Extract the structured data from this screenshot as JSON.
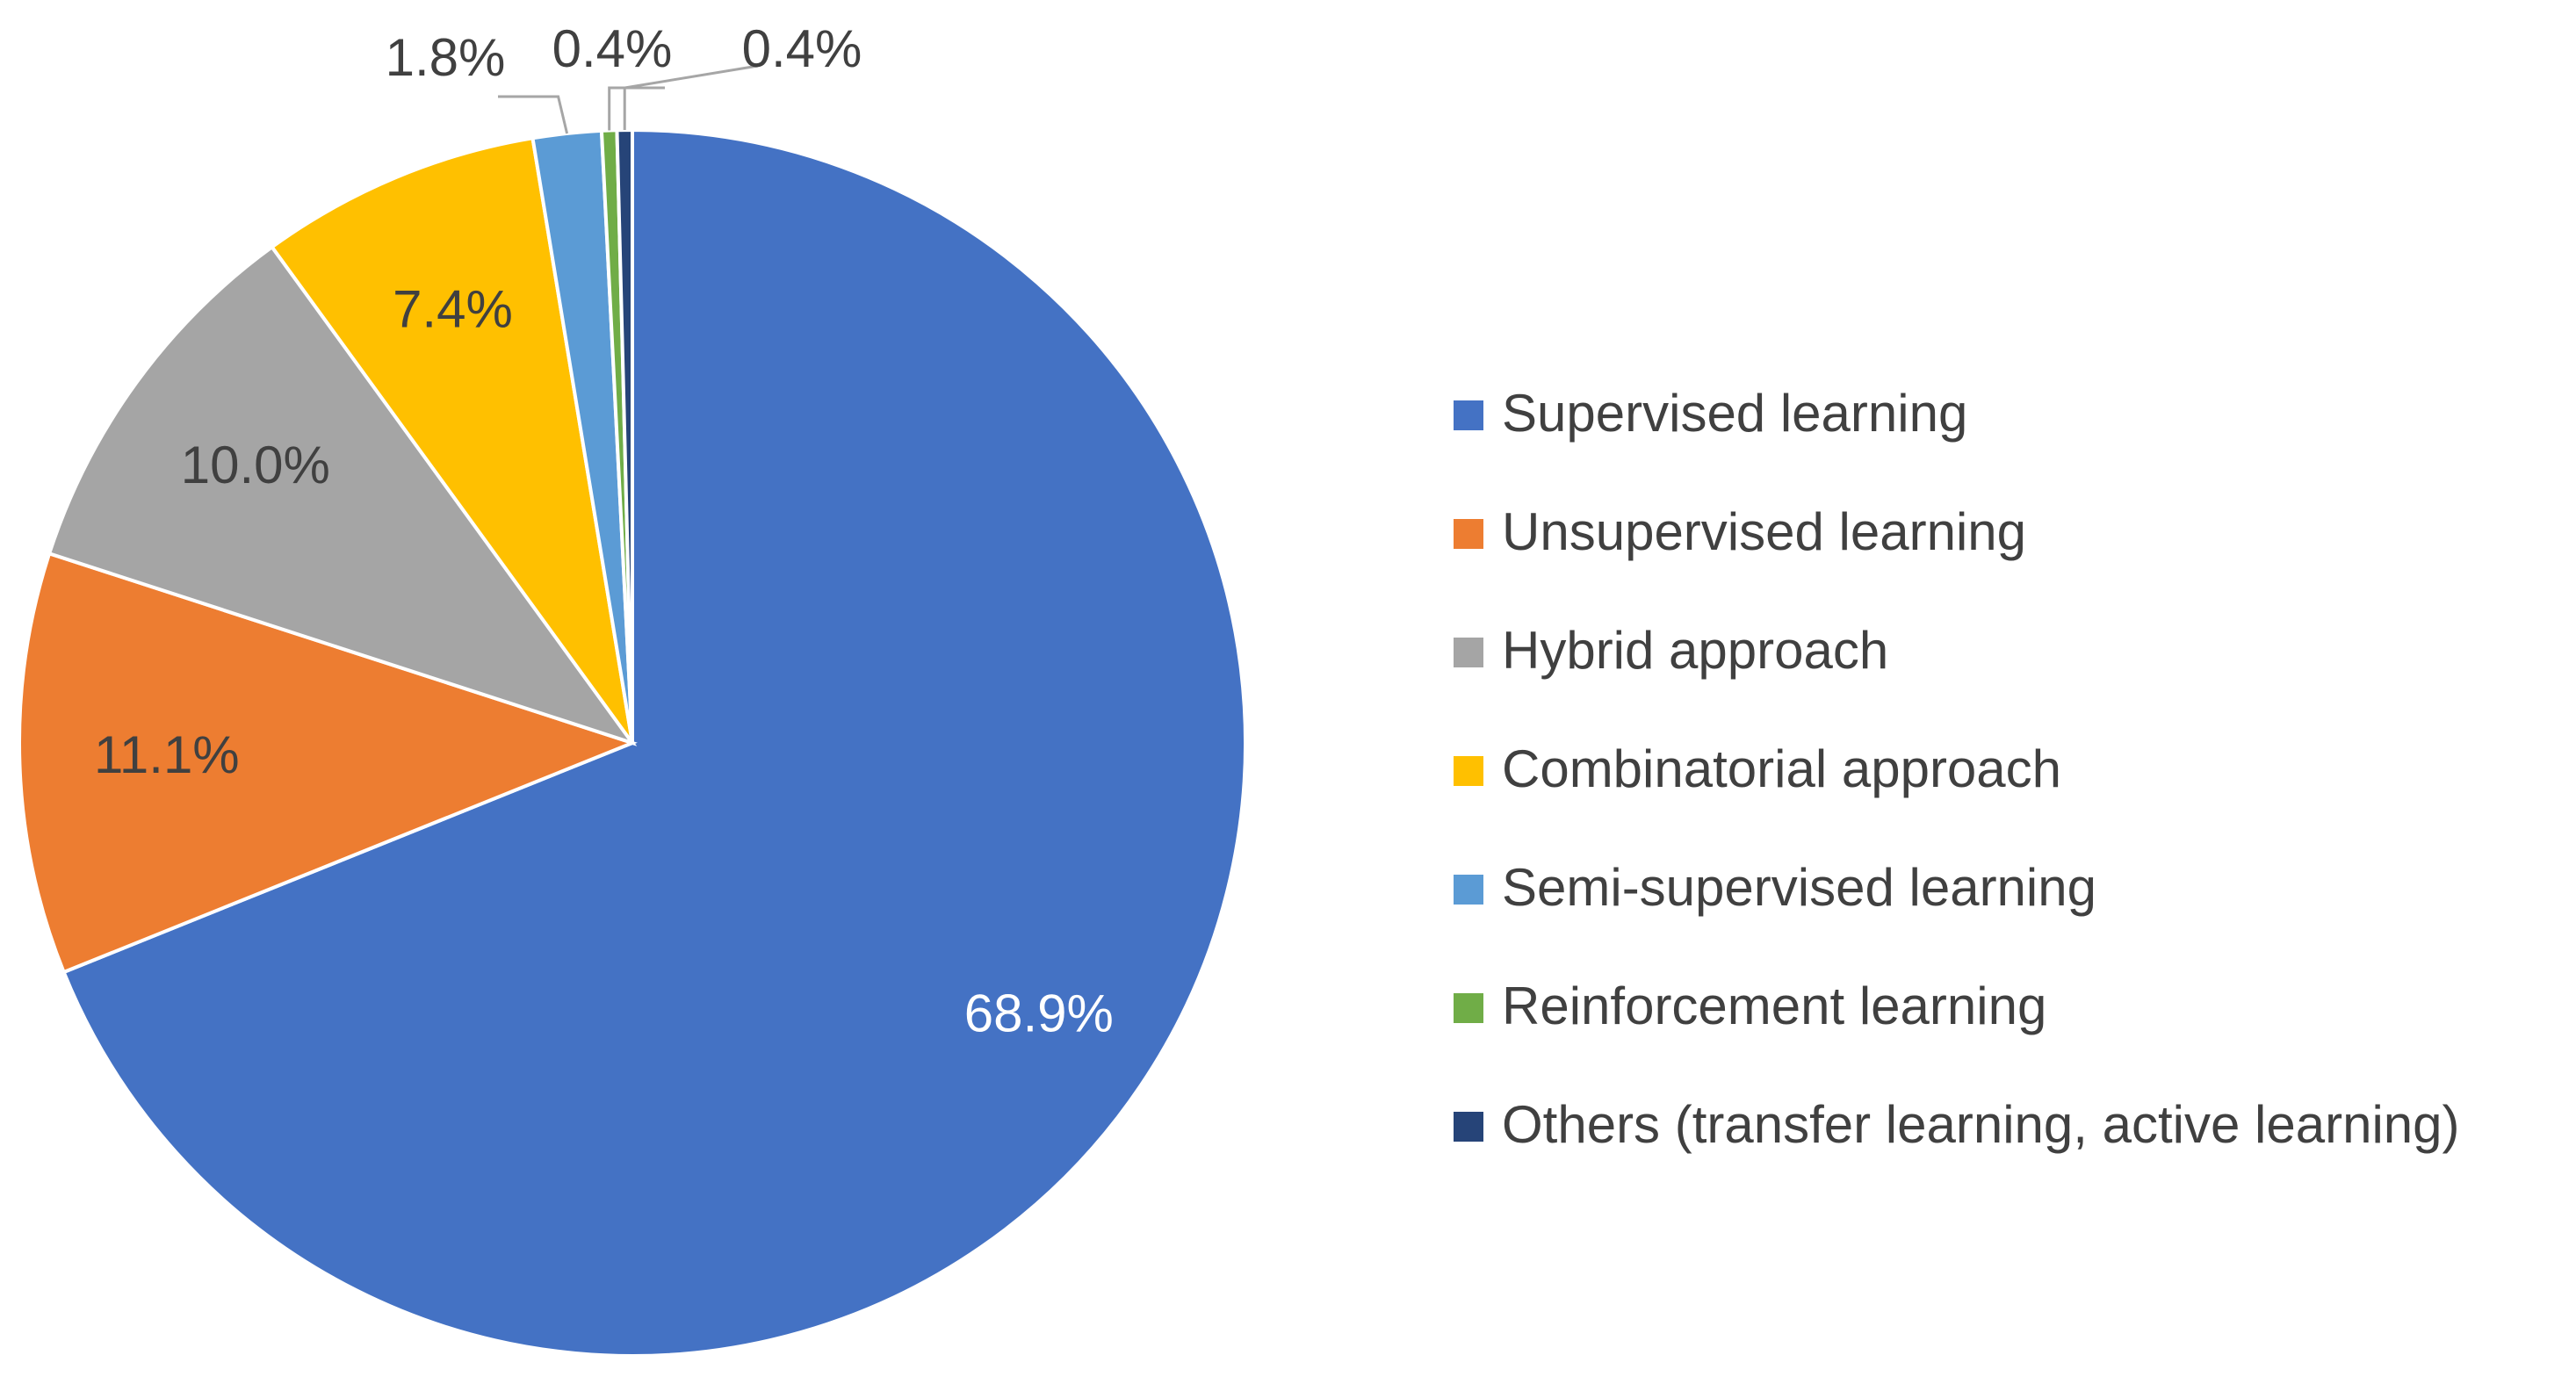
{
  "chart_data": {
    "type": "pie",
    "categories": [
      "Supervised learning",
      "Unsupervised learning",
      "Hybrid approach",
      "Combinatorial approach",
      "Semi-supervised learning",
      "Reinforcement learning",
      "Others (transfer learning, active learning)"
    ],
    "values": [
      68.9,
      11.1,
      10.0,
      7.4,
      1.8,
      0.4,
      0.4
    ],
    "value_labels": [
      "68.9%",
      "11.1%",
      "10.0%",
      "7.4%",
      "1.8%",
      "0.4%",
      "0.4%"
    ],
    "colors": [
      "#4472c4",
      "#ed7d31",
      "#a5a5a5",
      "#ffc000",
      "#5b9bd5",
      "#70ad47",
      "#264478"
    ],
    "legend": "right"
  }
}
